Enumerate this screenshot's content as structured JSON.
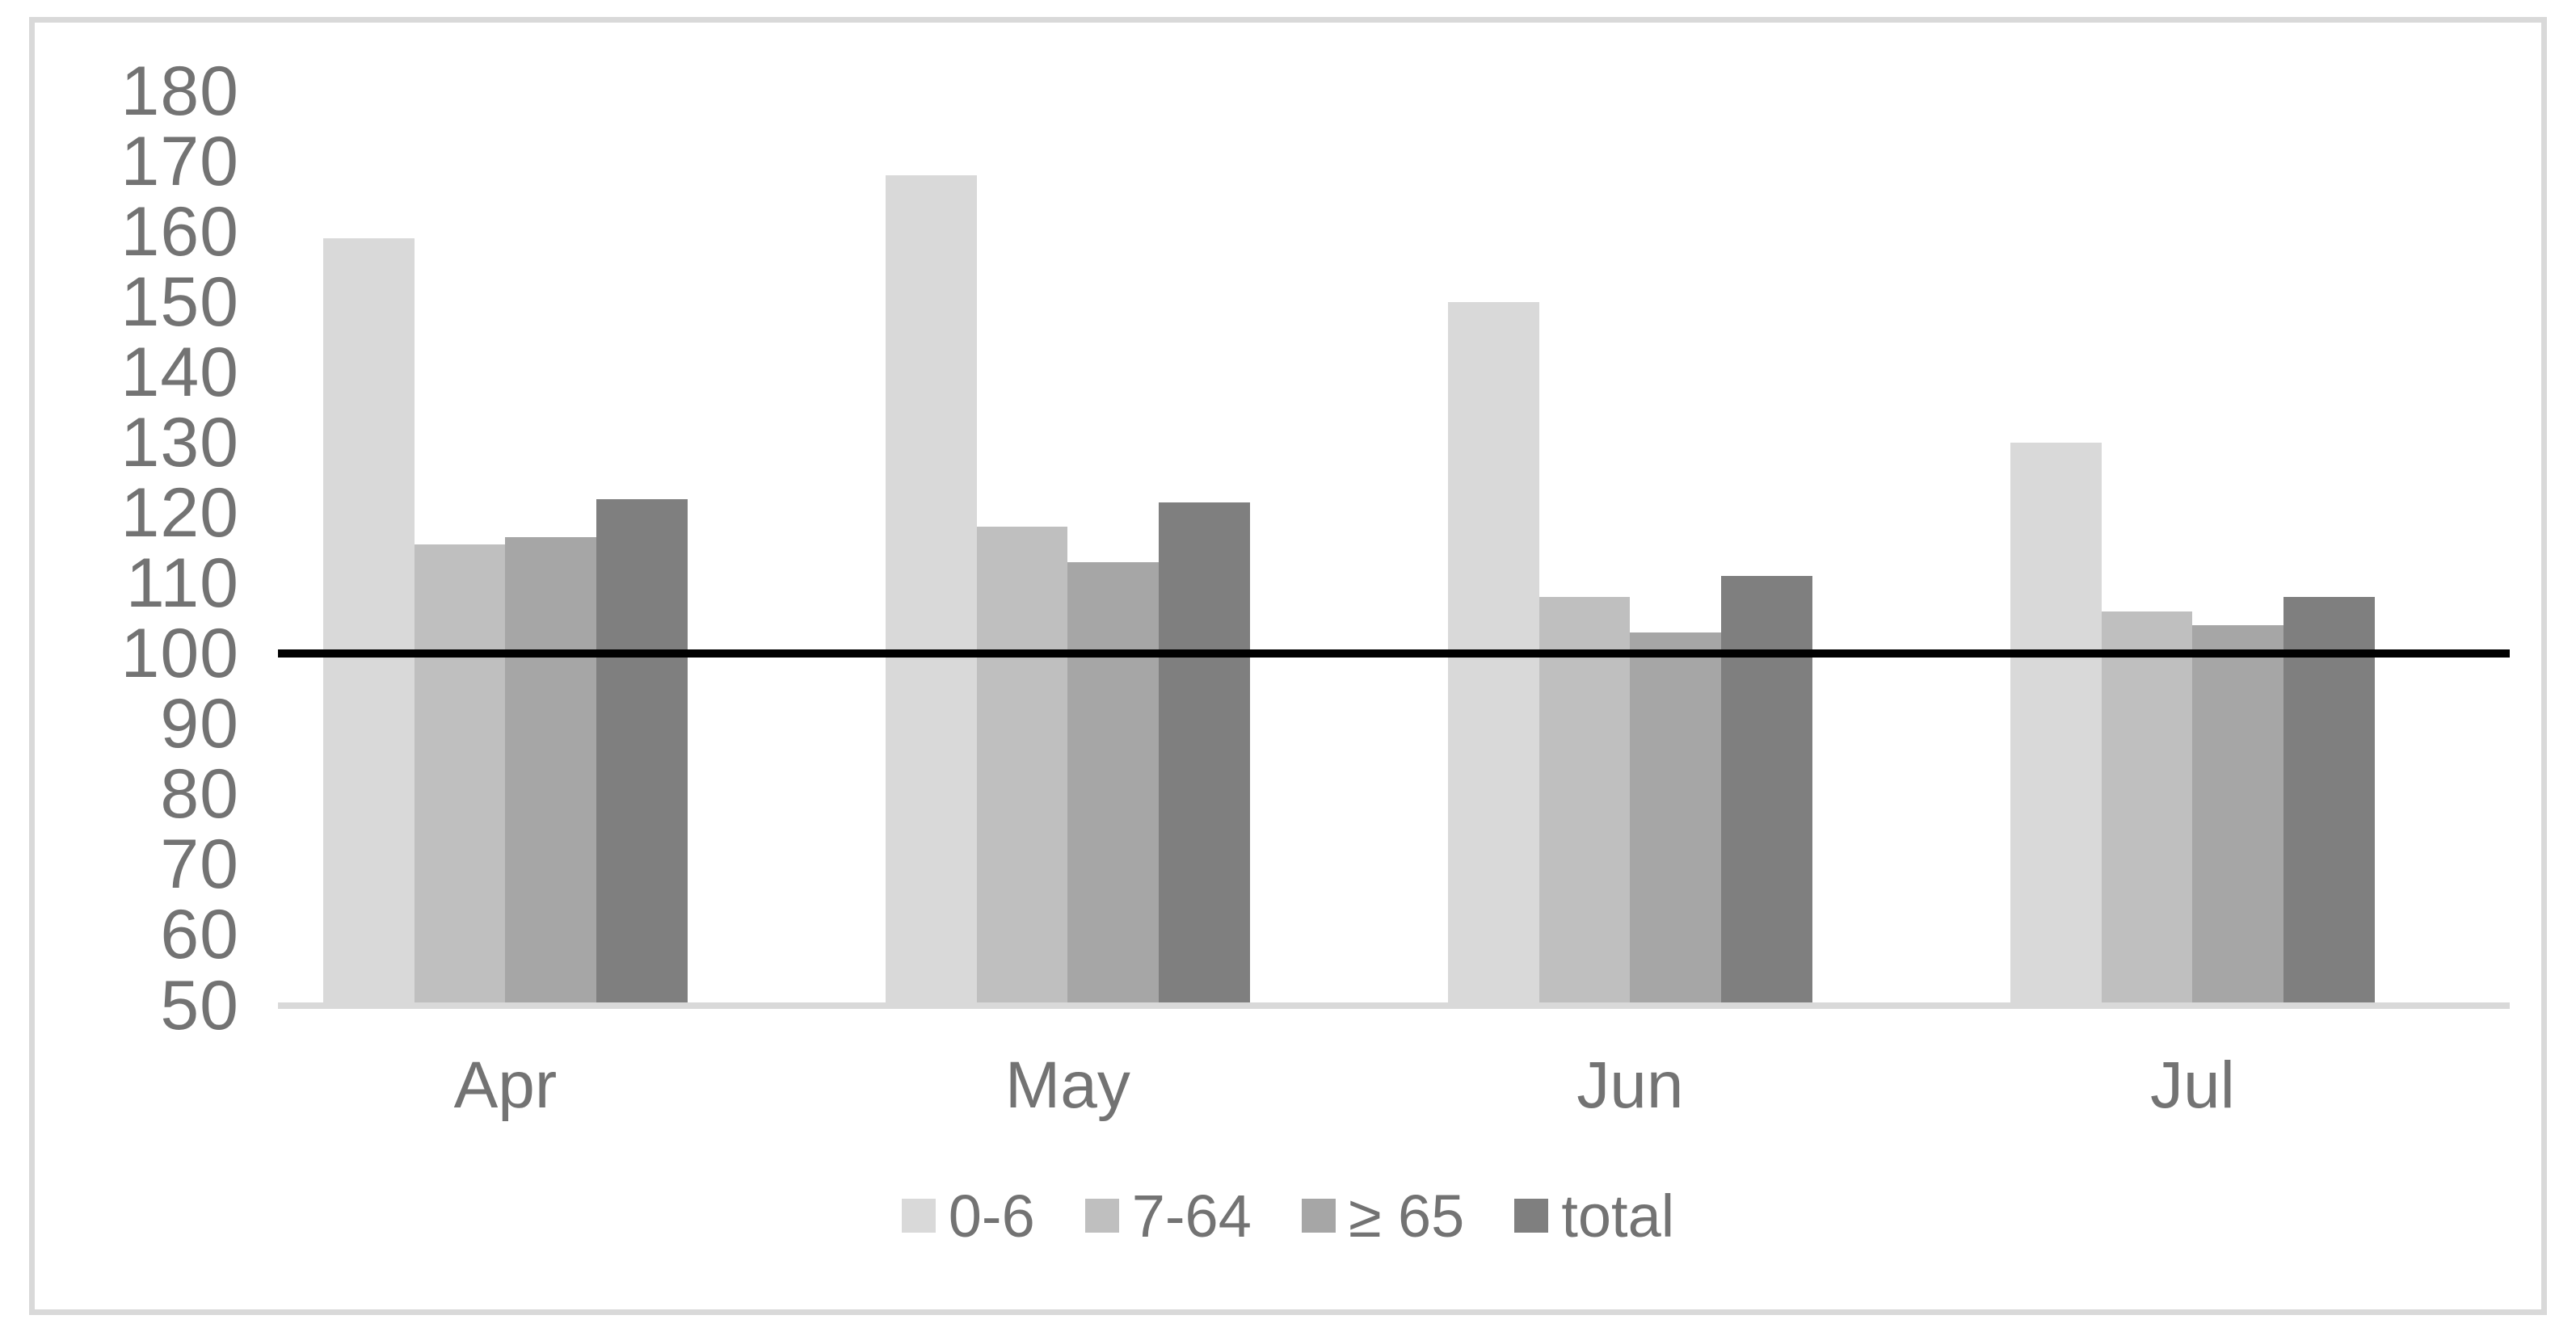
{
  "chart_data": {
    "type": "bar",
    "title": "",
    "xlabel": "",
    "ylabel": "",
    "categories": [
      "Apr",
      "May",
      "Jun",
      "Jul"
    ],
    "series": [
      {
        "name": "0-6",
        "color": "#d9d9d9",
        "values": [
          159,
          168,
          150,
          130
        ]
      },
      {
        "name": "7-64",
        "color": "#bfbfbf",
        "values": [
          115.5,
          118,
          108,
          106
        ]
      },
      {
        "name": "≥ 65",
        "color": "#a6a6a6",
        "values": [
          116.5,
          113,
          103,
          104
        ]
      },
      {
        "name": "total",
        "color": "#7f7f7f",
        "values": [
          122,
          121.5,
          111,
          108
        ]
      }
    ],
    "yticks": [
      "180",
      "170",
      "160",
      "150",
      "140",
      "130",
      "120",
      "110",
      "100",
      "90",
      "80",
      "70",
      "60",
      "50"
    ],
    "ylim": [
      50,
      180
    ],
    "ytick_step": 10,
    "reference_line": {
      "value": 100,
      "color": "#000000"
    },
    "legend_position": "bottom",
    "grid": false
  },
  "styles": {
    "background": "#ffffff",
    "border_color": "#d9d9d9",
    "axis_line_color": "#d9d9d9",
    "text_color": "#737373"
  }
}
